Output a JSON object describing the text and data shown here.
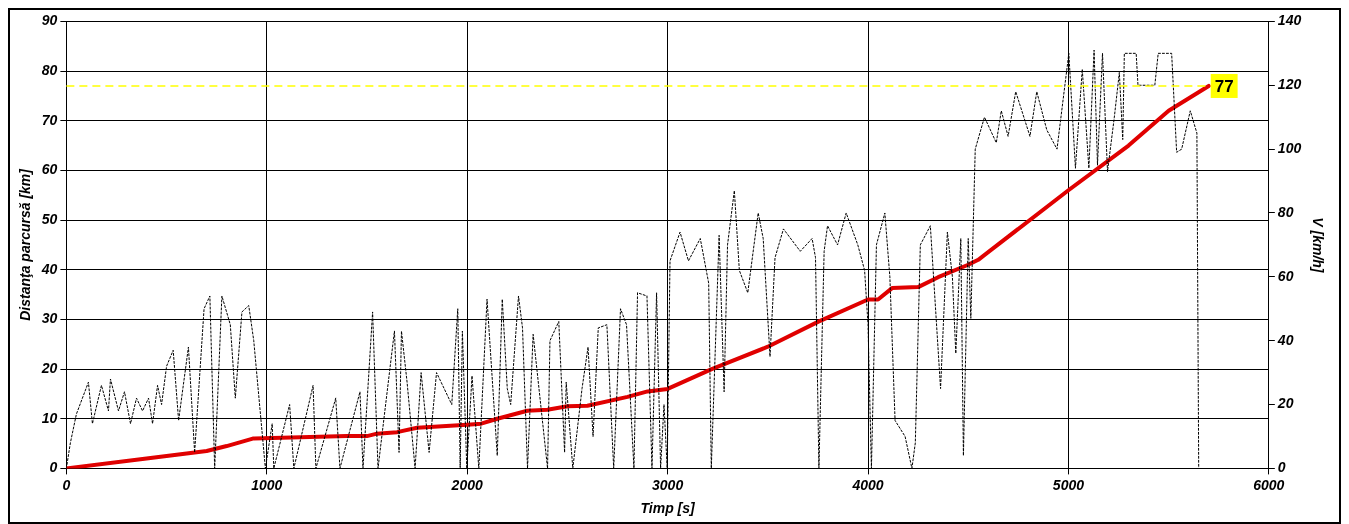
{
  "chart_data": {
    "type": "line",
    "xlabel": "Timp [s]",
    "ylabel": "Distanţa parcursă [km]",
    "y2label": "V [km/h]",
    "xlim": [
      0,
      6000
    ],
    "xticks": [
      0,
      1000,
      2000,
      3000,
      4000,
      5000,
      6000
    ],
    "ylim": [
      0,
      90
    ],
    "yticks": [
      0,
      10,
      20,
      30,
      40,
      50,
      60,
      70,
      80,
      90
    ],
    "y2lim": [
      0,
      140
    ],
    "y2ticks": [
      0,
      20,
      40,
      60,
      80,
      100,
      120,
      140
    ],
    "grid": true,
    "legend": false,
    "marker": "none",
    "ref_lines": [
      {
        "axis": "y",
        "value": 77,
        "label": "77",
        "color": "#ffff00",
        "line_style": "dashed"
      }
    ],
    "series": [
      {
        "color": "#000000",
        "axis": "y2",
        "line_style": "dotted",
        "x": [
          0,
          20,
          50,
          110,
          130,
          175,
          210,
          220,
          260,
          290,
          320,
          350,
          380,
          410,
          430,
          455,
          475,
          500,
          533,
          560,
          609,
          640,
          687,
          716,
          740,
          776,
          818,
          843,
          876,
          910,
          935,
          993,
          1027,
          1035,
          1114,
          1135,
          1231,
          1245,
          1344,
          1365,
          1465,
          1480,
          1528,
          1555,
          1612,
          1637,
          1660,
          1672,
          1700,
          1740,
          1770,
          1810,
          1847,
          1923,
          1953,
          1965,
          1976,
          1998,
          2024,
          2058,
          2099,
          2150,
          2175,
          2200,
          2217,
          2256,
          2276,
          2301,
          2329,
          2401,
          2413,
          2457,
          2486,
          2494,
          2527,
          2573,
          2603,
          2628,
          2654,
          2697,
          2731,
          2765,
          2795,
          2832,
          2850,
          2897,
          2922,
          2945,
          2965,
          2982,
          2998,
          3012,
          3062,
          3104,
          3163,
          3205,
          3218,
          3257,
          3282,
          3299,
          3333,
          3358,
          3400,
          3452,
          3477,
          3511,
          3536,
          3578,
          3662,
          3721,
          3738,
          3755,
          3781,
          3798,
          3848,
          3891,
          3949,
          3983,
          4000,
          4017,
          4042,
          4084,
          4109,
          4135,
          4185,
          4219,
          4236,
          4261,
          4311,
          4362,
          4396,
          4421,
          4438,
          4463,
          4476,
          4500,
          4513,
          4535,
          4581,
          4640,
          4665,
          4699,
          4737,
          4808,
          4842,
          4892,
          4943,
          5002,
          5035,
          5069,
          5102,
          5128,
          5145,
          5170,
          5195,
          5229,
          5254,
          5271,
          5279,
          5338,
          5347,
          5431,
          5448,
          5515,
          5540,
          5565,
          5608,
          5641,
          5650
        ],
        "values": [
          0,
          8,
          17,
          27,
          14,
          26,
          18,
          28,
          18,
          24,
          14,
          22,
          18,
          22,
          14,
          26,
          20,
          32,
          37,
          15,
          38,
          5,
          50,
          54,
          0,
          54,
          45,
          22,
          49,
          51,
          40,
          0,
          14,
          0,
          20,
          0,
          26,
          0,
          22,
          0,
          24,
          0,
          49,
          0,
          30,
          43,
          5,
          43,
          27,
          0,
          30,
          5,
          30,
          20,
          50,
          0,
          43,
          0,
          29,
          0,
          53,
          4,
          53,
          25,
          20,
          54,
          44,
          0,
          42,
          0,
          40,
          46,
          5,
          27,
          0,
          25,
          38,
          10,
          44,
          45,
          0,
          50,
          45,
          0,
          55,
          54,
          0,
          55,
          0,
          20,
          0,
          65,
          74,
          65,
          72,
          58,
          0,
          73,
          24,
          70,
          87,
          62,
          55,
          80,
          72,
          35,
          66,
          75,
          68,
          72,
          66,
          0,
          68,
          76,
          70,
          80,
          70,
          62,
          45,
          0,
          70,
          80,
          60,
          15,
          10,
          0,
          8,
          70,
          76,
          25,
          74,
          60,
          36,
          72,
          4,
          72,
          47,
          100,
          110,
          102,
          112,
          104,
          118,
          104,
          118,
          106,
          100,
          130,
          94,
          125,
          94,
          131,
          95,
          130,
          93,
          110,
          124,
          103,
          130,
          130,
          120,
          120,
          130,
          130,
          99,
          100,
          112,
          105,
          0
        ]
      },
      {
        "color": "#e00000",
        "axis": "y",
        "line_style": "solid",
        "x": [
          0,
          400,
          600,
          700,
          800,
          930,
          1400,
          1500,
          1550,
          1650,
          1750,
          2000,
          2070,
          2150,
          2300,
          2400,
          2500,
          2600,
          2800,
          2900,
          3000,
          3220,
          3500,
          3750,
          4000,
          4050,
          4120,
          4250,
          4350,
          4500,
          4550,
          5000,
          5300,
          5500,
          5700
        ],
        "values": [
          0,
          2,
          3,
          3.5,
          4.5,
          6,
          6.5,
          6.5,
          7,
          7.3,
          8.2,
          8.8,
          9,
          10,
          11.6,
          11.8,
          12.5,
          12.6,
          14.4,
          15.5,
          16,
          20,
          24.5,
          29.5,
          34,
          34,
          36.3,
          36.5,
          38.5,
          41,
          42,
          56,
          65,
          72,
          77
        ]
      }
    ]
  }
}
